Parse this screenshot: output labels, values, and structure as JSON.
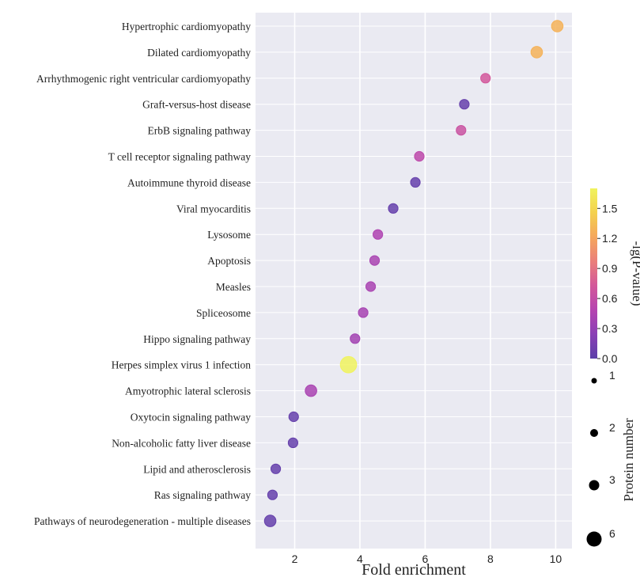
{
  "chart_data": {
    "type": "scatter",
    "title": "",
    "xlabel": "Fold enrichment",
    "ylabel": "",
    "xlim": [
      0.8,
      10.5
    ],
    "xticks": [
      2,
      4,
      6,
      8,
      10
    ],
    "grid": true,
    "background": "#EAEAF2",
    "points": [
      {
        "label": "Hypertrophic cardiomyopathy",
        "x": 10.05,
        "neglogp": 1.28,
        "proteins": 2
      },
      {
        "label": "Dilated cardiomyopathy",
        "x": 9.42,
        "neglogp": 1.28,
        "proteins": 2
      },
      {
        "label": "Arrhythmogenic right ventricular cardiomyopathy",
        "x": 7.85,
        "neglogp": 0.72,
        "proteins": 1
      },
      {
        "label": "Graft-versus-host disease",
        "x": 7.2,
        "neglogp": 0.05,
        "proteins": 1
      },
      {
        "label": "ErbB signaling pathway",
        "x": 7.1,
        "neglogp": 0.65,
        "proteins": 1
      },
      {
        "label": "T cell receptor signaling pathway",
        "x": 5.82,
        "neglogp": 0.55,
        "proteins": 1
      },
      {
        "label": "Autoimmune thyroid disease",
        "x": 5.7,
        "neglogp": 0.05,
        "proteins": 1
      },
      {
        "label": "Viral myocarditis",
        "x": 5.02,
        "neglogp": 0.05,
        "proteins": 1
      },
      {
        "label": "Lysosome",
        "x": 4.55,
        "neglogp": 0.45,
        "proteins": 1
      },
      {
        "label": "Apoptosis",
        "x": 4.45,
        "neglogp": 0.42,
        "proteins": 1
      },
      {
        "label": "Measles",
        "x": 4.33,
        "neglogp": 0.42,
        "proteins": 1
      },
      {
        "label": "Spliceosome",
        "x": 4.1,
        "neglogp": 0.4,
        "proteins": 1
      },
      {
        "label": "Hippo signaling pathway",
        "x": 3.85,
        "neglogp": 0.38,
        "proteins": 1
      },
      {
        "label": "Herpes simplex virus 1 infection",
        "x": 3.65,
        "neglogp": 1.7,
        "proteins": 6
      },
      {
        "label": "Amyotrophic lateral sclerosis",
        "x": 2.5,
        "neglogp": 0.42,
        "proteins": 2
      },
      {
        "label": "Oxytocin signaling pathway",
        "x": 1.97,
        "neglogp": 0.05,
        "proteins": 1
      },
      {
        "label": "Non-alcoholic fatty liver disease",
        "x": 1.95,
        "neglogp": 0.05,
        "proteins": 1
      },
      {
        "label": "Lipid and atherosclerosis",
        "x": 1.42,
        "neglogp": 0.05,
        "proteins": 1
      },
      {
        "label": "Ras signaling pathway",
        "x": 1.32,
        "neglogp": 0.05,
        "proteins": 1
      },
      {
        "label": "Pathways of neurodegeneration - multiple diseases",
        "x": 1.25,
        "neglogp": 0.05,
        "proteins": 2
      }
    ],
    "colorbar": {
      "title": "-lg(P-value)",
      "min": 0.0,
      "max": 1.7,
      "ticks": [
        "0.0",
        "0.3",
        "0.6",
        "0.9",
        "1.2",
        "1.5"
      ],
      "colormap": "plasma",
      "stops": [
        "#5b3fa8",
        "#8a3fb5",
        "#b544b0",
        "#d3589a",
        "#ea7f7a",
        "#f5a75c",
        "#f4d14e",
        "#f0f35e"
      ]
    },
    "size_legend": {
      "title": "Protein number",
      "entries": [
        "1",
        "2",
        "3",
        "6"
      ]
    }
  }
}
